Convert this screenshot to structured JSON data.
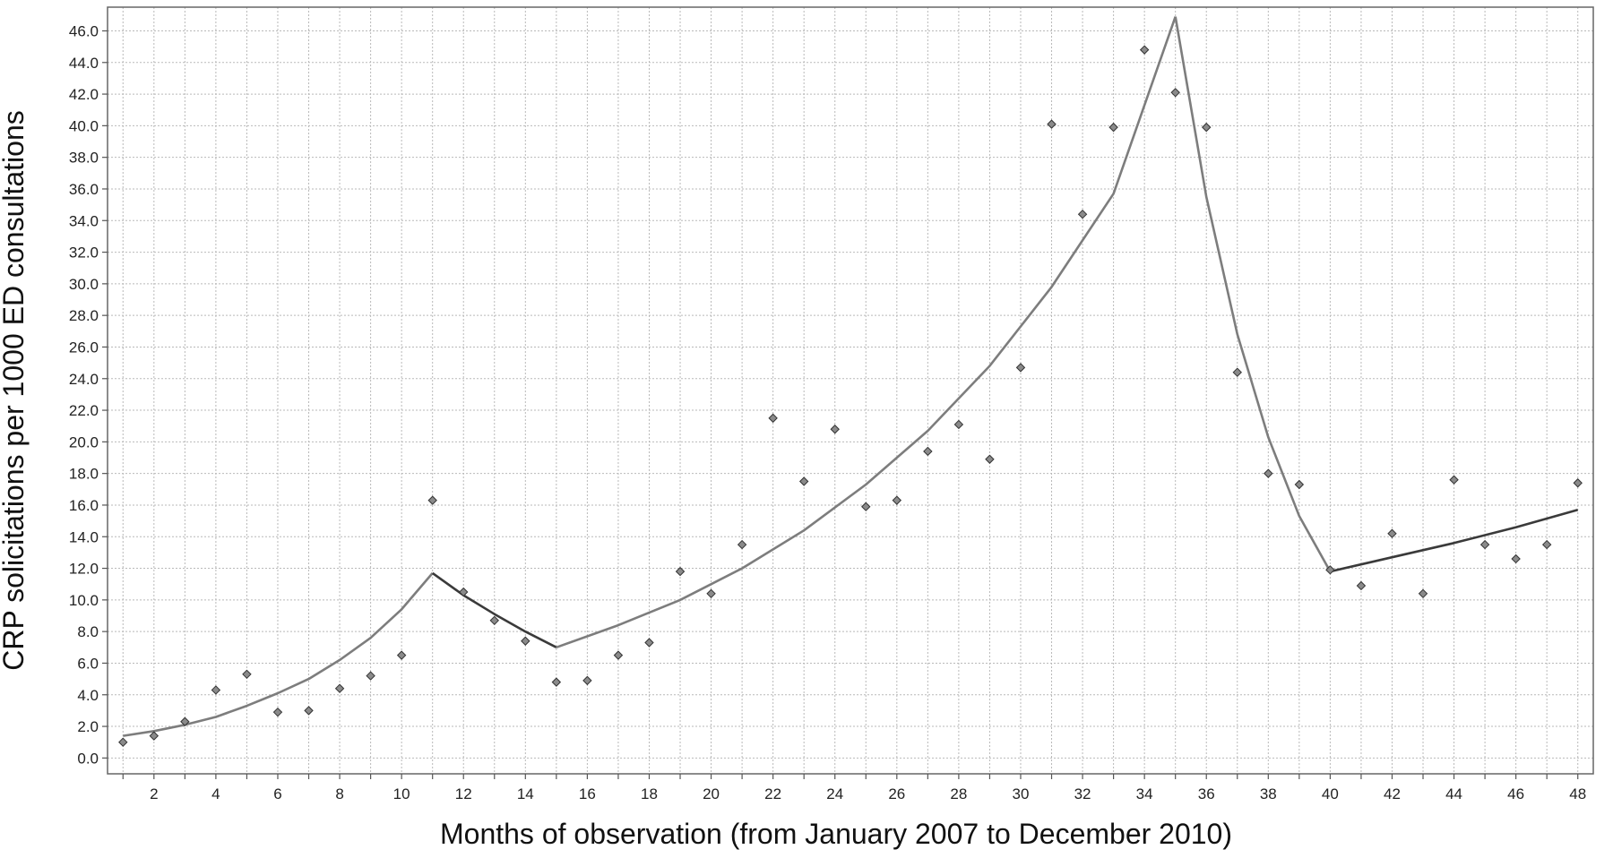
{
  "chart_data": {
    "type": "scatter",
    "title": "",
    "xlabel": "Months of observation (from January 2007 to December 2010)",
    "ylabel": "CRP solicitations per 1000 ED consultations",
    "xlim": [
      0.5,
      48.5
    ],
    "ylim": [
      -1,
      47.5
    ],
    "x_ticks": [
      2,
      4,
      6,
      8,
      10,
      12,
      14,
      16,
      18,
      20,
      22,
      24,
      26,
      28,
      30,
      32,
      34,
      36,
      38,
      40,
      42,
      44,
      46,
      48
    ],
    "x_tick_labels": [
      "2",
      "4",
      "6",
      "8",
      "10",
      "12",
      "14",
      "16",
      "18",
      "20",
      "22",
      "24",
      "26",
      "28",
      "30",
      "32",
      "34",
      "36",
      "38",
      "40",
      "42",
      "44",
      "46",
      "48"
    ],
    "y_ticks": [
      0,
      2,
      4,
      6,
      8,
      10,
      12,
      14,
      16,
      18,
      20,
      22,
      24,
      26,
      28,
      30,
      32,
      34,
      36,
      38,
      40,
      42,
      44,
      46
    ],
    "y_tick_labels": [
      "0.0",
      "2.0",
      "4.0",
      "6.0",
      "8.0",
      "10.0",
      "12.0",
      "14.0",
      "16.0",
      "18.0",
      "20.0",
      "22.0",
      "24.0",
      "26.0",
      "28.0",
      "30.0",
      "32.0",
      "34.0",
      "36.0",
      "38.0",
      "40.0",
      "42.0",
      "44.0",
      "46.0"
    ],
    "grid": true,
    "observed": {
      "x": [
        1,
        2,
        3,
        4,
        5,
        6,
        7,
        8,
        9,
        10,
        11,
        12,
        13,
        14,
        15,
        16,
        17,
        18,
        19,
        20,
        21,
        22,
        23,
        24,
        25,
        26,
        27,
        28,
        29,
        30,
        31,
        32,
        33,
        34,
        35,
        36,
        37,
        38,
        39,
        40,
        41,
        42,
        43,
        44,
        45,
        46,
        47,
        48
      ],
      "y": [
        1.0,
        1.4,
        2.3,
        4.3,
        5.3,
        2.9,
        3.0,
        4.4,
        5.2,
        6.5,
        16.3,
        10.5,
        8.7,
        7.4,
        4.8,
        4.9,
        6.5,
        7.3,
        11.8,
        10.4,
        13.5,
        21.5,
        17.5,
        20.8,
        15.9,
        16.3,
        19.4,
        21.1,
        18.9,
        24.7,
        40.1,
        34.4,
        39.9,
        44.8,
        42.1,
        39.9,
        24.4,
        18.0,
        17.3,
        11.9,
        10.9,
        14.2,
        10.4,
        17.6,
        13.5,
        12.6,
        13.5,
        17.4
      ]
    },
    "fit_segments": [
      {
        "x": [
          1,
          2,
          3,
          4,
          5,
          6,
          7,
          8,
          9,
          10,
          11
        ],
        "y": [
          1.4,
          1.7,
          2.1,
          2.6,
          3.3,
          4.1,
          5.0,
          6.2,
          7.6,
          9.4,
          11.7
        ],
        "shade": "light"
      },
      {
        "x": [
          11,
          12,
          13,
          14,
          15
        ],
        "y": [
          11.7,
          10.3,
          9.1,
          8.0,
          7.0
        ],
        "shade": "dark"
      },
      {
        "x": [
          15,
          17,
          19,
          21,
          23,
          25,
          27,
          29,
          31,
          33,
          35
        ],
        "y": [
          7.0,
          8.4,
          10.0,
          12.0,
          14.4,
          17.3,
          20.7,
          24.8,
          29.8,
          35.7,
          46.9
        ],
        "shade": "light"
      },
      {
        "x": [
          35,
          36,
          37,
          38,
          39,
          40
        ],
        "y": [
          46.9,
          35.5,
          26.8,
          20.3,
          15.3,
          11.8
        ],
        "shade": "light"
      },
      {
        "x": [
          40,
          42,
          44,
          46,
          48
        ],
        "y": [
          11.8,
          12.7,
          13.6,
          14.6,
          15.7
        ],
        "shade": "dark"
      }
    ]
  }
}
